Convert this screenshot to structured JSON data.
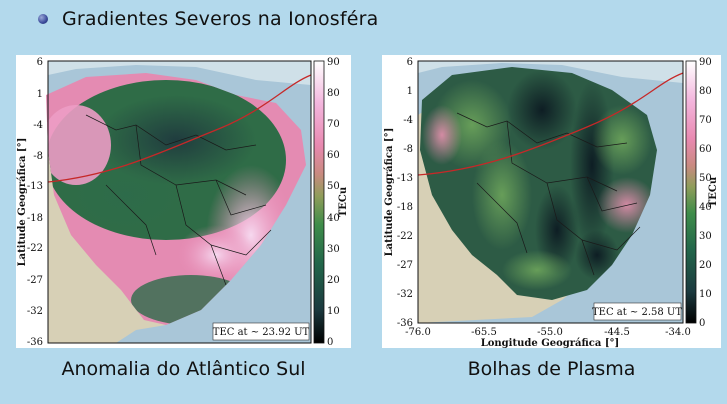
{
  "bullet": {
    "text": "Gradientes Severos na Ionosféra"
  },
  "colorbar": {
    "ticks": [
      "90",
      "80",
      "70",
      "60",
      "50",
      "40",
      "30",
      "20",
      "10",
      "0"
    ],
    "label": "TECu",
    "colors": [
      "#000000",
      "#1c3a3f",
      "#22664a",
      "#3f8d4a",
      "#8f9d5a",
      "#c98a80",
      "#e889b0",
      "#f3b6dd",
      "#ffffff"
    ]
  },
  "maps": [
    {
      "ylabel": "Latitude Geográfica [°]",
      "yticks": [
        "6",
        "1",
        "-4",
        "-8",
        "-13",
        "-18",
        "-22",
        "-27",
        "-32",
        "-36"
      ],
      "annotation": "TEC at ~ 23.92 UT",
      "caption": "Anomalia do Atlântico Sul"
    },
    {
      "ylabel": "Latitude Geográfica [°]",
      "yticks": [
        "6",
        "1",
        "-4",
        "-8",
        "-13",
        "-18",
        "-22",
        "-27",
        "-32",
        "-36"
      ],
      "xticks": [
        "-76.0",
        "-65.5",
        "-55.0",
        "-44.5",
        "-34.0"
      ],
      "xlabel": "Longitude Geográfica [°]",
      "annotation": "TEC at ~ 2.58 UT",
      "caption": "Bolhas de Plasma"
    }
  ]
}
